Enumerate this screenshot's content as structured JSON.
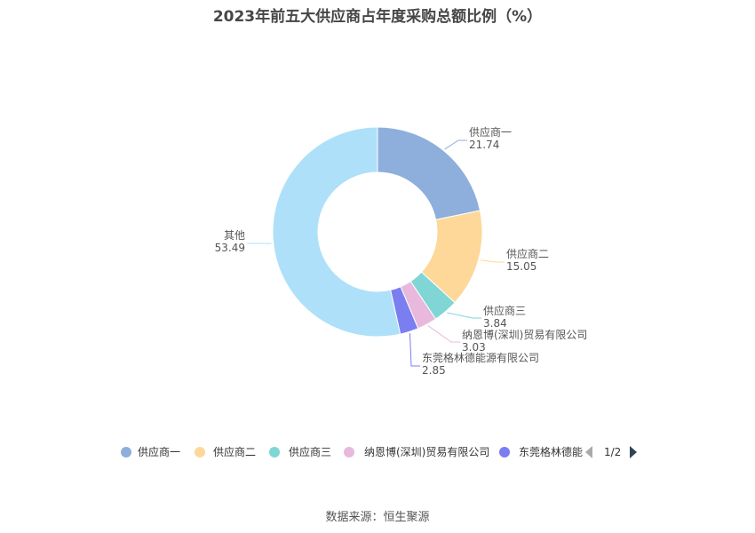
{
  "title": "2023年前五大供应商占年度采购总额比例（%）",
  "source": "数据来源：恒生聚源",
  "chart_data": {
    "type": "pie",
    "donut": true,
    "title": "2023年前五大供应商占年度采购总额比例（%）",
    "series": [
      {
        "name": "供应商一",
        "value": 21.74,
        "value_label": "21.74",
        "color": "#8eaedc"
      },
      {
        "name": "供应商二",
        "value": 15.05,
        "value_label": "15.05",
        "color": "#fdd899"
      },
      {
        "name": "供应商三",
        "value": 3.84,
        "value_label": "3.84",
        "color": "#7fd6d5"
      },
      {
        "name": "纳恩博(深圳)贸易有限公司",
        "value": 3.03,
        "value_label": "3.03",
        "color": "#e8b9dc"
      },
      {
        "name": "东莞格林德能源有限公司",
        "value": 2.85,
        "value_label": "2.85",
        "color": "#7b7ef0"
      },
      {
        "name": "其他",
        "value": 53.49,
        "value_label": "53.49",
        "color": "#aee0f9"
      }
    ],
    "legend": {
      "position": "bottom",
      "visible_items": [
        "供应商一",
        "供应商二",
        "供应商三",
        "纳恩博(深圳)贸易有限公司",
        "东莞格林德能"
      ],
      "page_indicator": "1/2"
    }
  }
}
